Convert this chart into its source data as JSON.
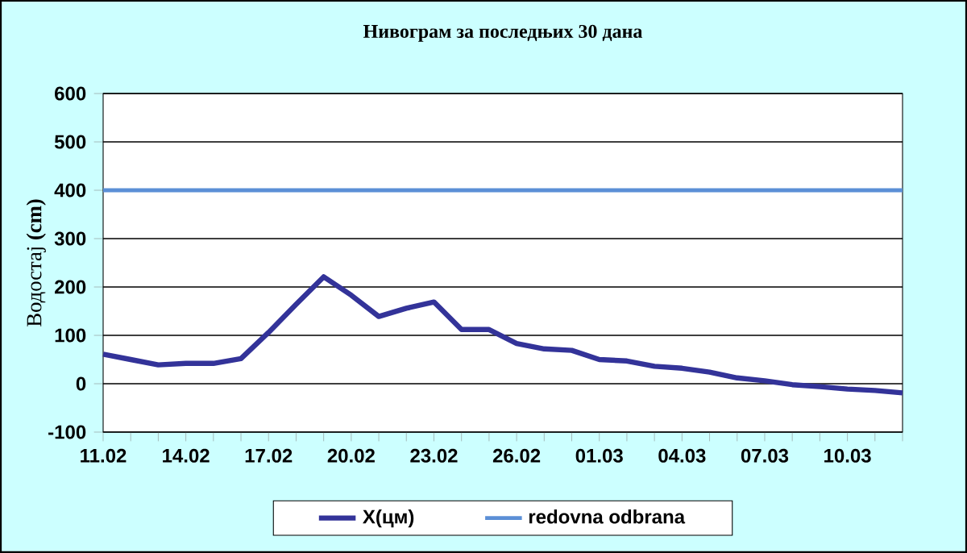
{
  "chart_data": {
    "type": "line",
    "title": "Нивограм за последњих 30 дана",
    "ylabel": "Водостај **(cm)**",
    "categories": [
      "11.02",
      null,
      null,
      "14.02",
      null,
      null,
      "17.02",
      null,
      null,
      "20.02",
      null,
      null,
      "23.02",
      null,
      null,
      "26.02",
      null,
      null,
      "01.03",
      null,
      null,
      "04.03",
      null,
      null,
      "07.03",
      null,
      null,
      "10.03",
      null,
      null
    ],
    "series": [
      {
        "name": "X(цм)",
        "color": "#333399",
        "values": [
          61,
          50,
          39,
          42,
          42,
          52,
          106,
          164,
          221,
          183,
          139,
          156,
          169,
          112,
          112,
          83,
          72,
          69,
          50,
          47,
          36,
          32,
          24,
          12,
          6,
          -2,
          -6,
          -11,
          -14,
          -19
        ]
      },
      {
        "name": "redovna odbrana",
        "color": "#5b8fd6",
        "values": [
          400,
          400,
          400,
          400,
          400,
          400,
          400,
          400,
          400,
          400,
          400,
          400,
          400,
          400,
          400,
          400,
          400,
          400,
          400,
          400,
          400,
          400,
          400,
          400,
          400,
          400,
          400,
          400,
          400,
          400
        ]
      }
    ],
    "ylim": [
      -100,
      600
    ],
    "yticks": [
      -100,
      0,
      100,
      200,
      300,
      400,
      500,
      600
    ],
    "grid": "y",
    "legend": "bottom"
  }
}
